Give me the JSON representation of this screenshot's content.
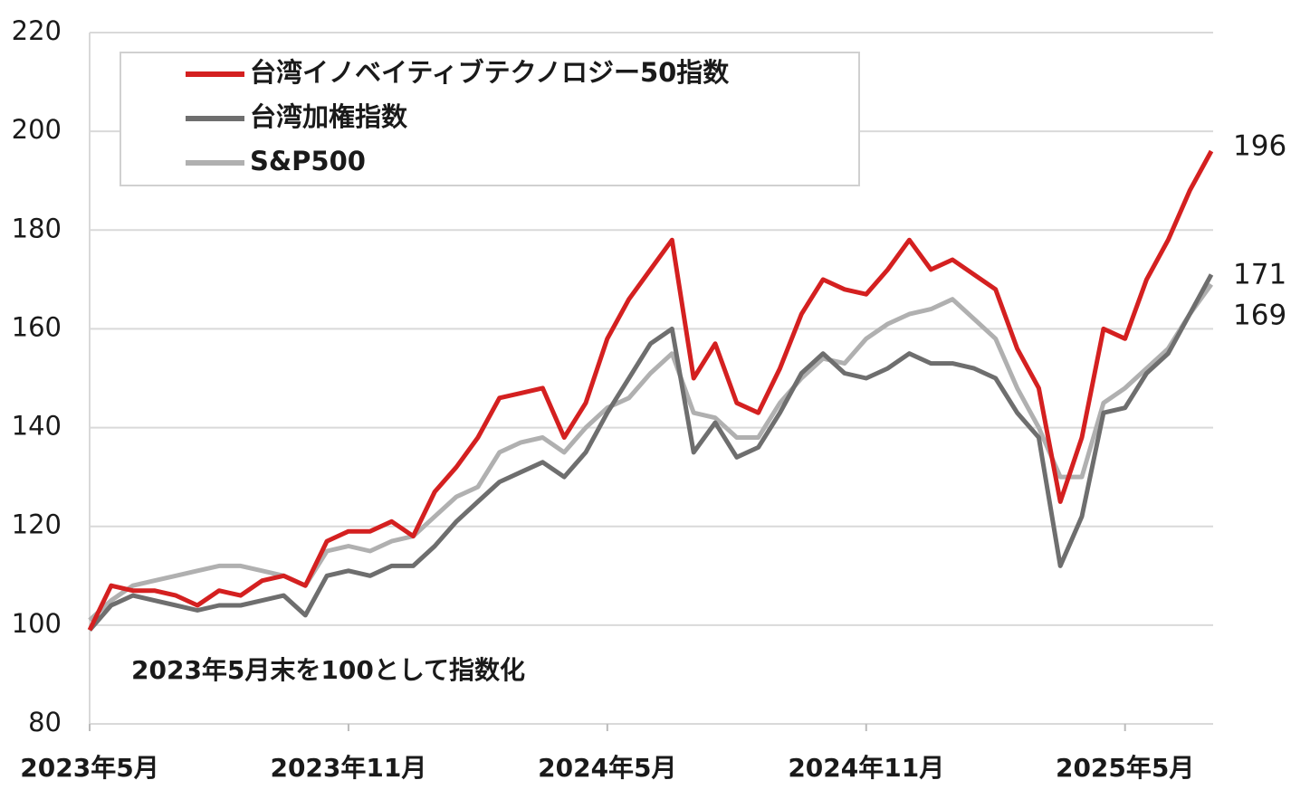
{
  "chart_data": {
    "type": "line",
    "annotation": "2023年5月末を100として指数化",
    "categories": [
      "2023年5月",
      null,
      null,
      null,
      null,
      null,
      null,
      null,
      null,
      null,
      null,
      null,
      "2023年11月",
      null,
      null,
      null,
      null,
      null,
      null,
      null,
      null,
      null,
      null,
      null,
      "2024年5月",
      null,
      null,
      null,
      null,
      null,
      null,
      null,
      null,
      null,
      null,
      null,
      "2024年11月",
      null,
      null,
      null,
      null,
      null,
      null,
      null,
      null,
      null,
      null,
      null,
      "2025年5月",
      null,
      null,
      null,
      null
    ],
    "series": [
      {
        "name": "台湾イノベイティブテクノロジー50指数",
        "color": "#d42020",
        "values": [
          99,
          108,
          107,
          107,
          106,
          104,
          107,
          106,
          109,
          110,
          108,
          117,
          119,
          119,
          121,
          118,
          127,
          132,
          138,
          146,
          147,
          148,
          138,
          145,
          158,
          166,
          172,
          178,
          150,
          157,
          145,
          143,
          152,
          163,
          170,
          168,
          167,
          172,
          178,
          172,
          174,
          171,
          168,
          156,
          148,
          125,
          138,
          160,
          158,
          170,
          178,
          188,
          196
        ]
      },
      {
        "name": "台湾加権指数",
        "color": "#6e6e6e",
        "values": [
          99,
          104,
          106,
          105,
          104,
          103,
          104,
          104,
          105,
          106,
          102,
          110,
          111,
          110,
          112,
          112,
          116,
          121,
          125,
          129,
          131,
          133,
          130,
          135,
          143,
          150,
          157,
          160,
          135,
          141,
          134,
          136,
          143,
          151,
          155,
          151,
          150,
          152,
          155,
          153,
          153,
          152,
          150,
          143,
          138,
          112,
          122,
          143,
          144,
          151,
          155,
          163,
          171
        ]
      },
      {
        "name": "S&P500",
        "color": "#b0b0b0",
        "values": [
          101,
          105,
          108,
          109,
          110,
          111,
          112,
          112,
          111,
          110,
          108,
          115,
          116,
          115,
          117,
          118,
          122,
          126,
          128,
          135,
          137,
          138,
          135,
          140,
          144,
          146,
          151,
          155,
          143,
          142,
          138,
          138,
          145,
          150,
          154,
          153,
          158,
          161,
          163,
          164,
          166,
          162,
          158,
          148,
          140,
          130,
          130,
          145,
          148,
          152,
          156,
          163,
          169
        ]
      }
    ],
    "ylim": [
      80,
      220
    ],
    "yticks": [
      80,
      100,
      120,
      140,
      160,
      180,
      200,
      220
    ],
    "grid": true,
    "legend": "upper left"
  }
}
